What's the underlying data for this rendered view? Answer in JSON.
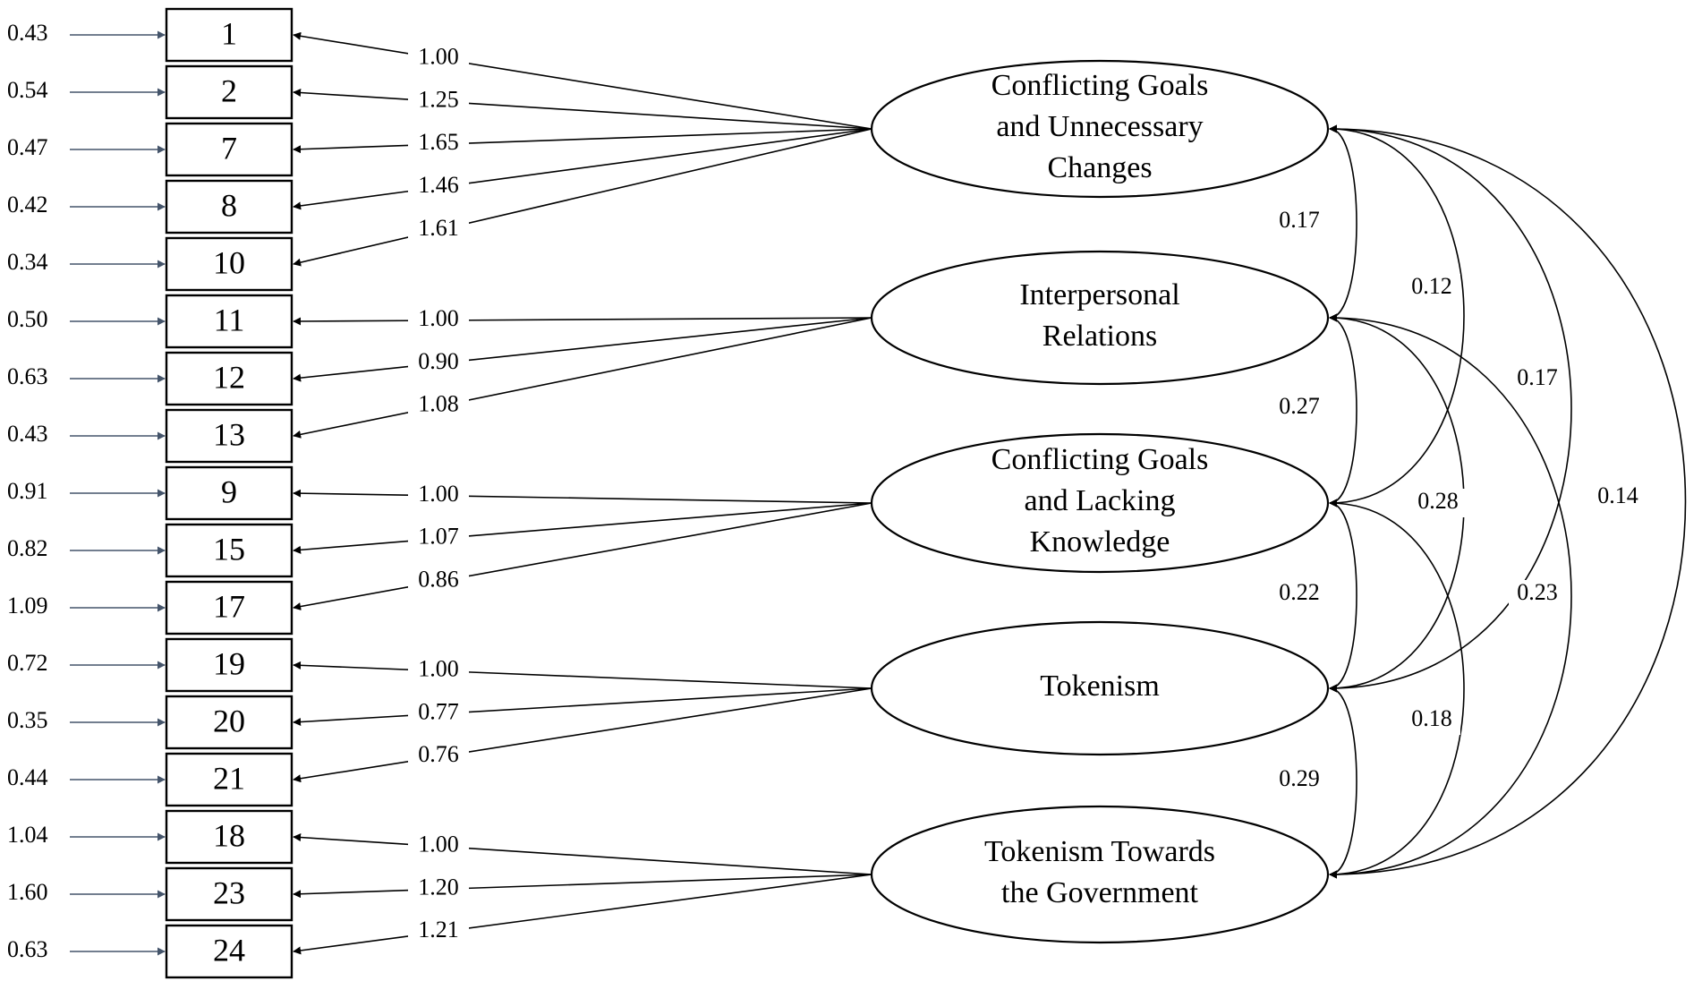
{
  "items": [
    {
      "label": "1",
      "error": "0.43",
      "loading": "1.00",
      "factor": 0
    },
    {
      "label": "2",
      "error": "0.54",
      "loading": "1.25",
      "factor": 0
    },
    {
      "label": "7",
      "error": "0.47",
      "loading": "1.65",
      "factor": 0
    },
    {
      "label": "8",
      "error": "0.42",
      "loading": "1.46",
      "factor": 0
    },
    {
      "label": "10",
      "error": "0.34",
      "loading": "1.61",
      "factor": 0
    },
    {
      "label": "11",
      "error": "0.50",
      "loading": "1.00",
      "factor": 1
    },
    {
      "label": "12",
      "error": "0.63",
      "loading": "0.90",
      "factor": 1
    },
    {
      "label": "13",
      "error": "0.43",
      "loading": "1.08",
      "factor": 1
    },
    {
      "label": "9",
      "error": "0.91",
      "loading": "1.00",
      "factor": 2
    },
    {
      "label": "15",
      "error": "0.82",
      "loading": "1.07",
      "factor": 2
    },
    {
      "label": "17",
      "error": "1.09",
      "loading": "0.86",
      "factor": 2
    },
    {
      "label": "19",
      "error": "0.72",
      "loading": "1.00",
      "factor": 3
    },
    {
      "label": "20",
      "error": "0.35",
      "loading": "0.77",
      "factor": 3
    },
    {
      "label": "21",
      "error": "0.44",
      "loading": "0.76",
      "factor": 3
    },
    {
      "label": "18",
      "error": "1.04",
      "loading": "1.00",
      "factor": 4
    },
    {
      "label": "23",
      "error": "1.60",
      "loading": "1.20",
      "factor": 4
    },
    {
      "label": "24",
      "error": "0.63",
      "loading": "1.21",
      "factor": 4
    }
  ],
  "factors": [
    {
      "lines": [
        "Conflicting Goals",
        "and Unnecessary",
        "Changes"
      ]
    },
    {
      "lines": [
        "Interpersonal",
        "Relations"
      ]
    },
    {
      "lines": [
        "Conflicting Goals",
        "and Lacking",
        "Knowledge"
      ]
    },
    {
      "lines": [
        "Tokenism"
      ]
    },
    {
      "lines": [
        "Tokenism Towards",
        "the Government"
      ]
    }
  ],
  "covariances": [
    {
      "from": 0,
      "to": 1,
      "value": "0.17"
    },
    {
      "from": 1,
      "to": 2,
      "value": "0.27"
    },
    {
      "from": 2,
      "to": 3,
      "value": "0.22"
    },
    {
      "from": 3,
      "to": 4,
      "value": "0.29"
    },
    {
      "from": 0,
      "to": 2,
      "value": "0.12"
    },
    {
      "from": 1,
      "to": 3,
      "value": "0.28"
    },
    {
      "from": 2,
      "to": 4,
      "value": "0.18"
    },
    {
      "from": 0,
      "to": 3,
      "value": "0.17"
    },
    {
      "from": 1,
      "to": 4,
      "value": "0.23"
    },
    {
      "from": 0,
      "to": 4,
      "value": "0.14"
    }
  ]
}
